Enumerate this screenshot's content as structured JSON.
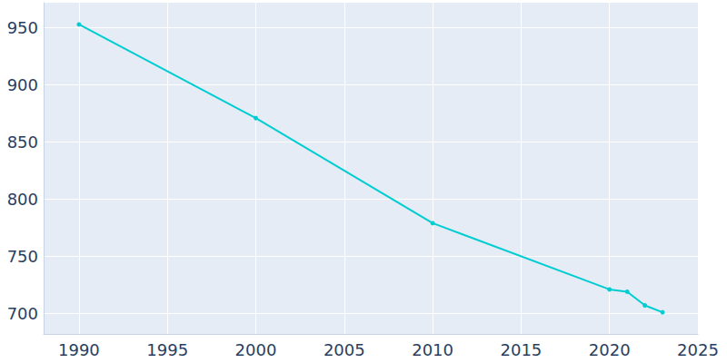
{
  "chart_data": {
    "type": "line",
    "x": [
      1990,
      2000,
      2010,
      2020,
      2021,
      2022,
      2023
    ],
    "values": [
      953,
      871,
      779,
      721,
      719,
      707,
      701
    ],
    "color": "#00cdd1",
    "marker": "circle",
    "xlim": [
      1988,
      2025
    ],
    "xticks": [
      1990,
      1995,
      2000,
      2005,
      2010,
      2015,
      2020,
      2025
    ],
    "ylim": [
      682,
      972
    ],
    "yticks": [
      700,
      750,
      800,
      850,
      900,
      950
    ],
    "grid": true
  }
}
